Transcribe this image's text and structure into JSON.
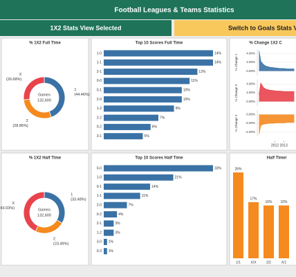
{
  "header": {
    "title": "Football Leagues & Teams Statistics"
  },
  "buttons": [
    "1X2 Stats View Selected",
    "Switch to Goals Stats V"
  ],
  "chart_data": [
    {
      "type": "donut",
      "title": "% 1X2 Full Time",
      "center_label": "Games",
      "center_value": "132,600",
      "categories": [
        "1",
        "2",
        "X"
      ],
      "values": [
        44.46,
        28.86,
        26.68
      ],
      "value_labels": [
        "(44.46%)",
        "(28.86%)",
        "(26.68%)"
      ],
      "colors": [
        "#3a72a6",
        "#f58a1f",
        "#e8434c"
      ]
    },
    {
      "type": "hbar",
      "title": "Top 10 Scores Full Time",
      "categories": [
        "1-0",
        "1-1",
        "2-1",
        "0-0",
        "0-1",
        "2-0",
        "1-2",
        "2-2",
        "0-2",
        "3-1"
      ],
      "values": [
        14,
        14,
        12,
        11,
        10,
        10,
        9,
        7,
        6,
        5
      ],
      "value_labels": [
        "14%",
        "14%",
        "12%",
        "11%",
        "10%",
        "10%",
        "9%",
        "7%",
        "6%",
        "5%"
      ],
      "color": "#3a72a6"
    },
    {
      "type": "area",
      "title": "% Change 1X2 C",
      "x": [
        2010.2,
        2010.4,
        2010.7,
        2011,
        2011.4,
        2011.8,
        2012.2,
        2012.6,
        2013,
        2013.4,
        2013.8,
        2014.2
      ],
      "xlim": [
        2010,
        2014.4
      ],
      "xticks": [
        2012,
        2013
      ],
      "series": [
        {
          "name": "% Change 1",
          "color": "#3a72a6",
          "values": [
            4.6,
            2.2,
            1.5,
            1.1,
            0.9,
            0.8,
            0.7,
            0.6,
            0.6,
            0.5,
            0.5,
            0.5
          ],
          "ylim": [
            -1,
            5
          ],
          "yticks": [
            {
              "value": 4,
              "label": "4.00%"
            },
            {
              "value": 2,
              "label": "2.00%"
            },
            {
              "value": 0,
              "label": "0.00%"
            }
          ]
        },
        {
          "name": "% Change X",
          "color": "#e8434c",
          "values": [
            1.5,
            4.2,
            3.2,
            2.8,
            2.6,
            2.5,
            2.4,
            2.4,
            2.3,
            2.3,
            2.3,
            2.3
          ],
          "ylim": [
            -1,
            5
          ],
          "yticks": [
            {
              "value": 4,
              "label": "4.00%"
            },
            {
              "value": 2,
              "label": "2.00%"
            },
            {
              "value": 0,
              "label": "0.00%"
            }
          ]
        },
        {
          "name": "% Change 2",
          "color": "#f58a1f",
          "values": [
            -4.5,
            -2.5,
            -2.2,
            -2.1,
            -2,
            -2,
            -1.9,
            -1.9,
            -1.9,
            -1.8,
            -1.8,
            -1.8
          ],
          "ylim": [
            -5,
            1
          ],
          "yticks": [
            {
              "value": 0,
              "label": "0.00%"
            },
            {
              "value": -2,
              "label": "-2.00%"
            },
            {
              "value": -4,
              "label": "-4.00%"
            }
          ]
        }
      ]
    },
    {
      "type": "donut",
      "title": "% 1X2 Half Time",
      "center_label": "Games",
      "center_value": "132,600",
      "categories": [
        "1",
        "2",
        "X"
      ],
      "values": [
        33.48,
        23.49,
        43.03
      ],
      "value_labels": [
        "(33.48%)",
        "(23.49%)",
        "(43.03%)"
      ],
      "colors": [
        "#3a72a6",
        "#f58a1f",
        "#e8434c"
      ]
    },
    {
      "type": "hbar",
      "title": "Top 10 Scores Half Time",
      "categories": [
        "0-0",
        "1-0",
        "0-1",
        "1-1",
        "2-0",
        "0-2",
        "2-1",
        "1-2",
        "3-0",
        "0-3"
      ],
      "values": [
        33,
        21,
        14,
        11,
        7,
        4,
        3,
        3,
        1,
        1
      ],
      "value_labels": [
        "33%",
        "21%",
        "14%",
        "11%",
        "7%",
        "4%",
        "3%",
        "3%",
        "1%",
        "1%"
      ],
      "color": "#3a72a6"
    },
    {
      "type": "vbar",
      "title": "Half Time/",
      "categories": [
        "1/1",
        "X/X",
        "2/2",
        "X/1"
      ],
      "values": [
        26,
        17,
        16,
        16
      ],
      "value_labels": [
        "26%",
        "17%",
        "16%",
        "16%"
      ],
      "color": "#f58a1f"
    }
  ]
}
